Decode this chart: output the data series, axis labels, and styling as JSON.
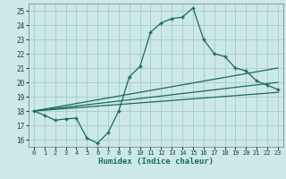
{
  "title": "",
  "xlabel": "Humidex (Indice chaleur)",
  "ylabel": "",
  "bg_color": "#cce8e8",
  "grid_color": "#aacfcf",
  "line_color": "#1a6b5a",
  "xlim": [
    -0.5,
    23.5
  ],
  "ylim": [
    15.5,
    25.5
  ],
  "xticks": [
    0,
    1,
    2,
    3,
    4,
    5,
    6,
    7,
    8,
    9,
    10,
    11,
    12,
    13,
    14,
    15,
    16,
    17,
    18,
    19,
    20,
    21,
    22,
    23
  ],
  "yticks": [
    16,
    17,
    18,
    19,
    20,
    21,
    22,
    23,
    24,
    25
  ],
  "series": {
    "main": {
      "x": [
        0,
        1,
        2,
        3,
        4,
        5,
        6,
        7,
        8,
        9,
        10,
        11,
        12,
        13,
        14,
        15,
        16,
        17,
        18,
        19,
        20,
        21,
        22,
        23
      ],
      "y": [
        18.0,
        17.7,
        17.35,
        17.45,
        17.5,
        16.1,
        15.75,
        16.5,
        18.0,
        20.4,
        21.1,
        23.5,
        24.15,
        24.45,
        24.55,
        25.2,
        23.0,
        22.0,
        21.8,
        21.0,
        20.8,
        20.1,
        19.8,
        19.5
      ]
    },
    "linear1": {
      "x": [
        0,
        23
      ],
      "y": [
        18.0,
        21.0
      ]
    },
    "linear2": {
      "x": [
        0,
        23
      ],
      "y": [
        18.0,
        20.0
      ]
    },
    "linear3": {
      "x": [
        0,
        23
      ],
      "y": [
        18.0,
        19.3
      ]
    }
  }
}
